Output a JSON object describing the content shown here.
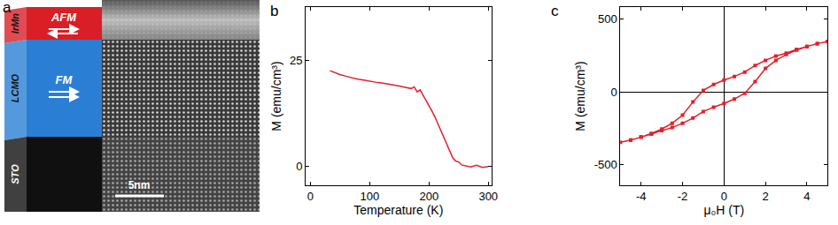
{
  "diagram": {
    "label": "a",
    "layers": [
      {
        "name": "IrMn",
        "role": "AFM",
        "color": "#d91e26"
      },
      {
        "name": "LCMO",
        "role": "FM",
        "color": "#2a7fd4"
      },
      {
        "name": "STO",
        "color": "#101010"
      }
    ],
    "scale_bar": "5nm"
  },
  "chart_data": [
    {
      "type": "line",
      "label": "b",
      "color": "#e3202a",
      "x_label": "Temperature (K)",
      "y_label": "M (emu/cm³)",
      "x": [
        33,
        40,
        50,
        60,
        70,
        80,
        90,
        100,
        110,
        120,
        130,
        140,
        150,
        160,
        170,
        175,
        180,
        185,
        190,
        195,
        200,
        205,
        210,
        215,
        220,
        225,
        230,
        235,
        240,
        245,
        250,
        255,
        260,
        270,
        280,
        290,
        300
      ],
      "values": [
        22.5,
        22.1,
        21.6,
        21.2,
        20.8,
        20.5,
        20.3,
        20.0,
        19.8,
        19.6,
        19.4,
        19.2,
        18.9,
        18.6,
        18.3,
        18.7,
        17.5,
        18.0,
        16.8,
        15.6,
        14.3,
        13.0,
        11.6,
        10.0,
        8.5,
        6.8,
        5.0,
        3.4,
        2.0,
        1.2,
        1.0,
        0.3,
        0.1,
        -0.2,
        0.2,
        -0.3,
        -0.1
      ],
      "xlim": [
        -8,
        305
      ],
      "xticks": [
        0,
        100,
        200,
        300
      ],
      "ylim": [
        -4.5,
        37.5
      ],
      "yticks": [
        0,
        25
      ],
      "grid": false
    },
    {
      "type": "scatter",
      "label": "c",
      "color": "#e3202a",
      "marker": "square",
      "line_style": "solid",
      "x_label": "μ₀H (T)",
      "y_label": "M (emu/cm³)",
      "x": [
        5,
        4.5,
        4,
        3.5,
        3,
        2.5,
        2,
        1.5,
        1,
        0.5,
        0,
        -0.5,
        -1,
        -1.5,
        -2,
        -2.5,
        -3,
        -3.5,
        -4,
        -4.5,
        -5,
        -4.5,
        -4,
        -3.5,
        -3,
        -2.5,
        -2,
        -1.5,
        -1,
        -0.5,
        0,
        0.5,
        1,
        1.5,
        2,
        2.5,
        3,
        3.5,
        4,
        4.5,
        5
      ],
      "values": [
        345,
        330,
        310,
        290,
        265,
        245,
        215,
        180,
        135,
        105,
        80,
        50,
        10,
        -70,
        -160,
        -215,
        -255,
        -285,
        -310,
        -330,
        -345,
        -330,
        -310,
        -290,
        -265,
        -245,
        -215,
        -180,
        -135,
        -105,
        -80,
        -50,
        -10,
        70,
        160,
        215,
        255,
        285,
        310,
        330,
        345
      ],
      "xlim": [
        -5,
        5
      ],
      "xticks": [
        -4,
        -2,
        0,
        2,
        4
      ],
      "ylim": [
        -640,
        580
      ],
      "yticks": [
        -500,
        0,
        500
      ],
      "grid": false
    }
  ]
}
